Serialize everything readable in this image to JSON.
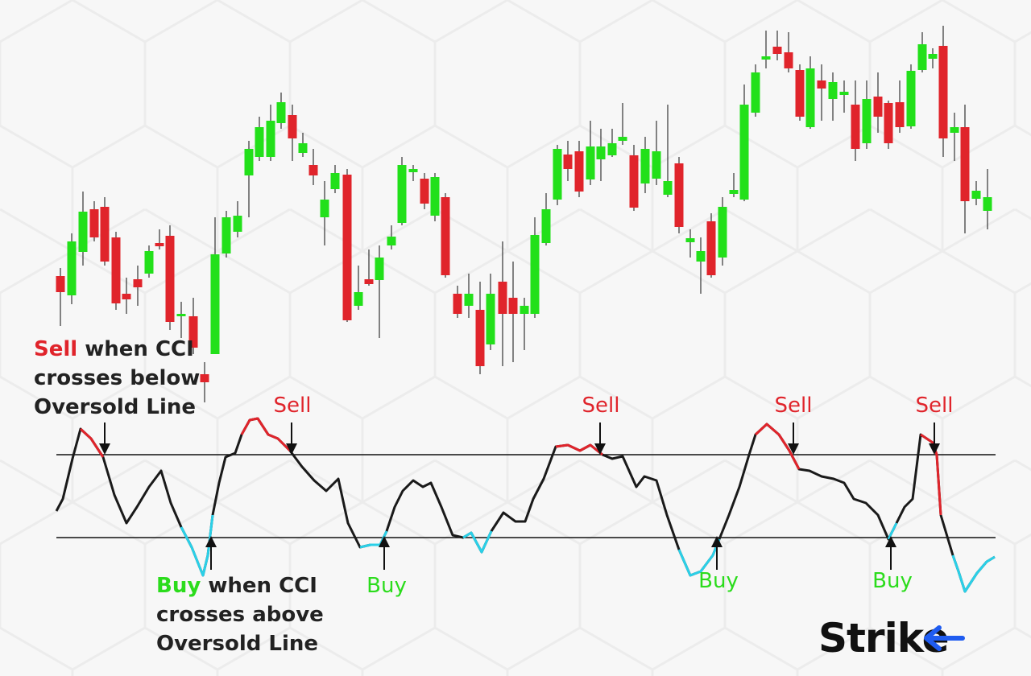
{
  "sell_note": {
    "highlight": "Sell",
    "lines": [
      "when CCI",
      "crosses below",
      "Oversold Line"
    ]
  },
  "buy_note": {
    "highlight": "Buy",
    "lines": [
      "when CCI",
      "crosses above",
      "Oversold Line"
    ]
  },
  "sell_labels": [
    "Sell",
    "Sell",
    "Sell",
    "Sell"
  ],
  "buy_labels": [
    "Buy",
    "Buy",
    "Buy"
  ],
  "logo": "Strike"
}
